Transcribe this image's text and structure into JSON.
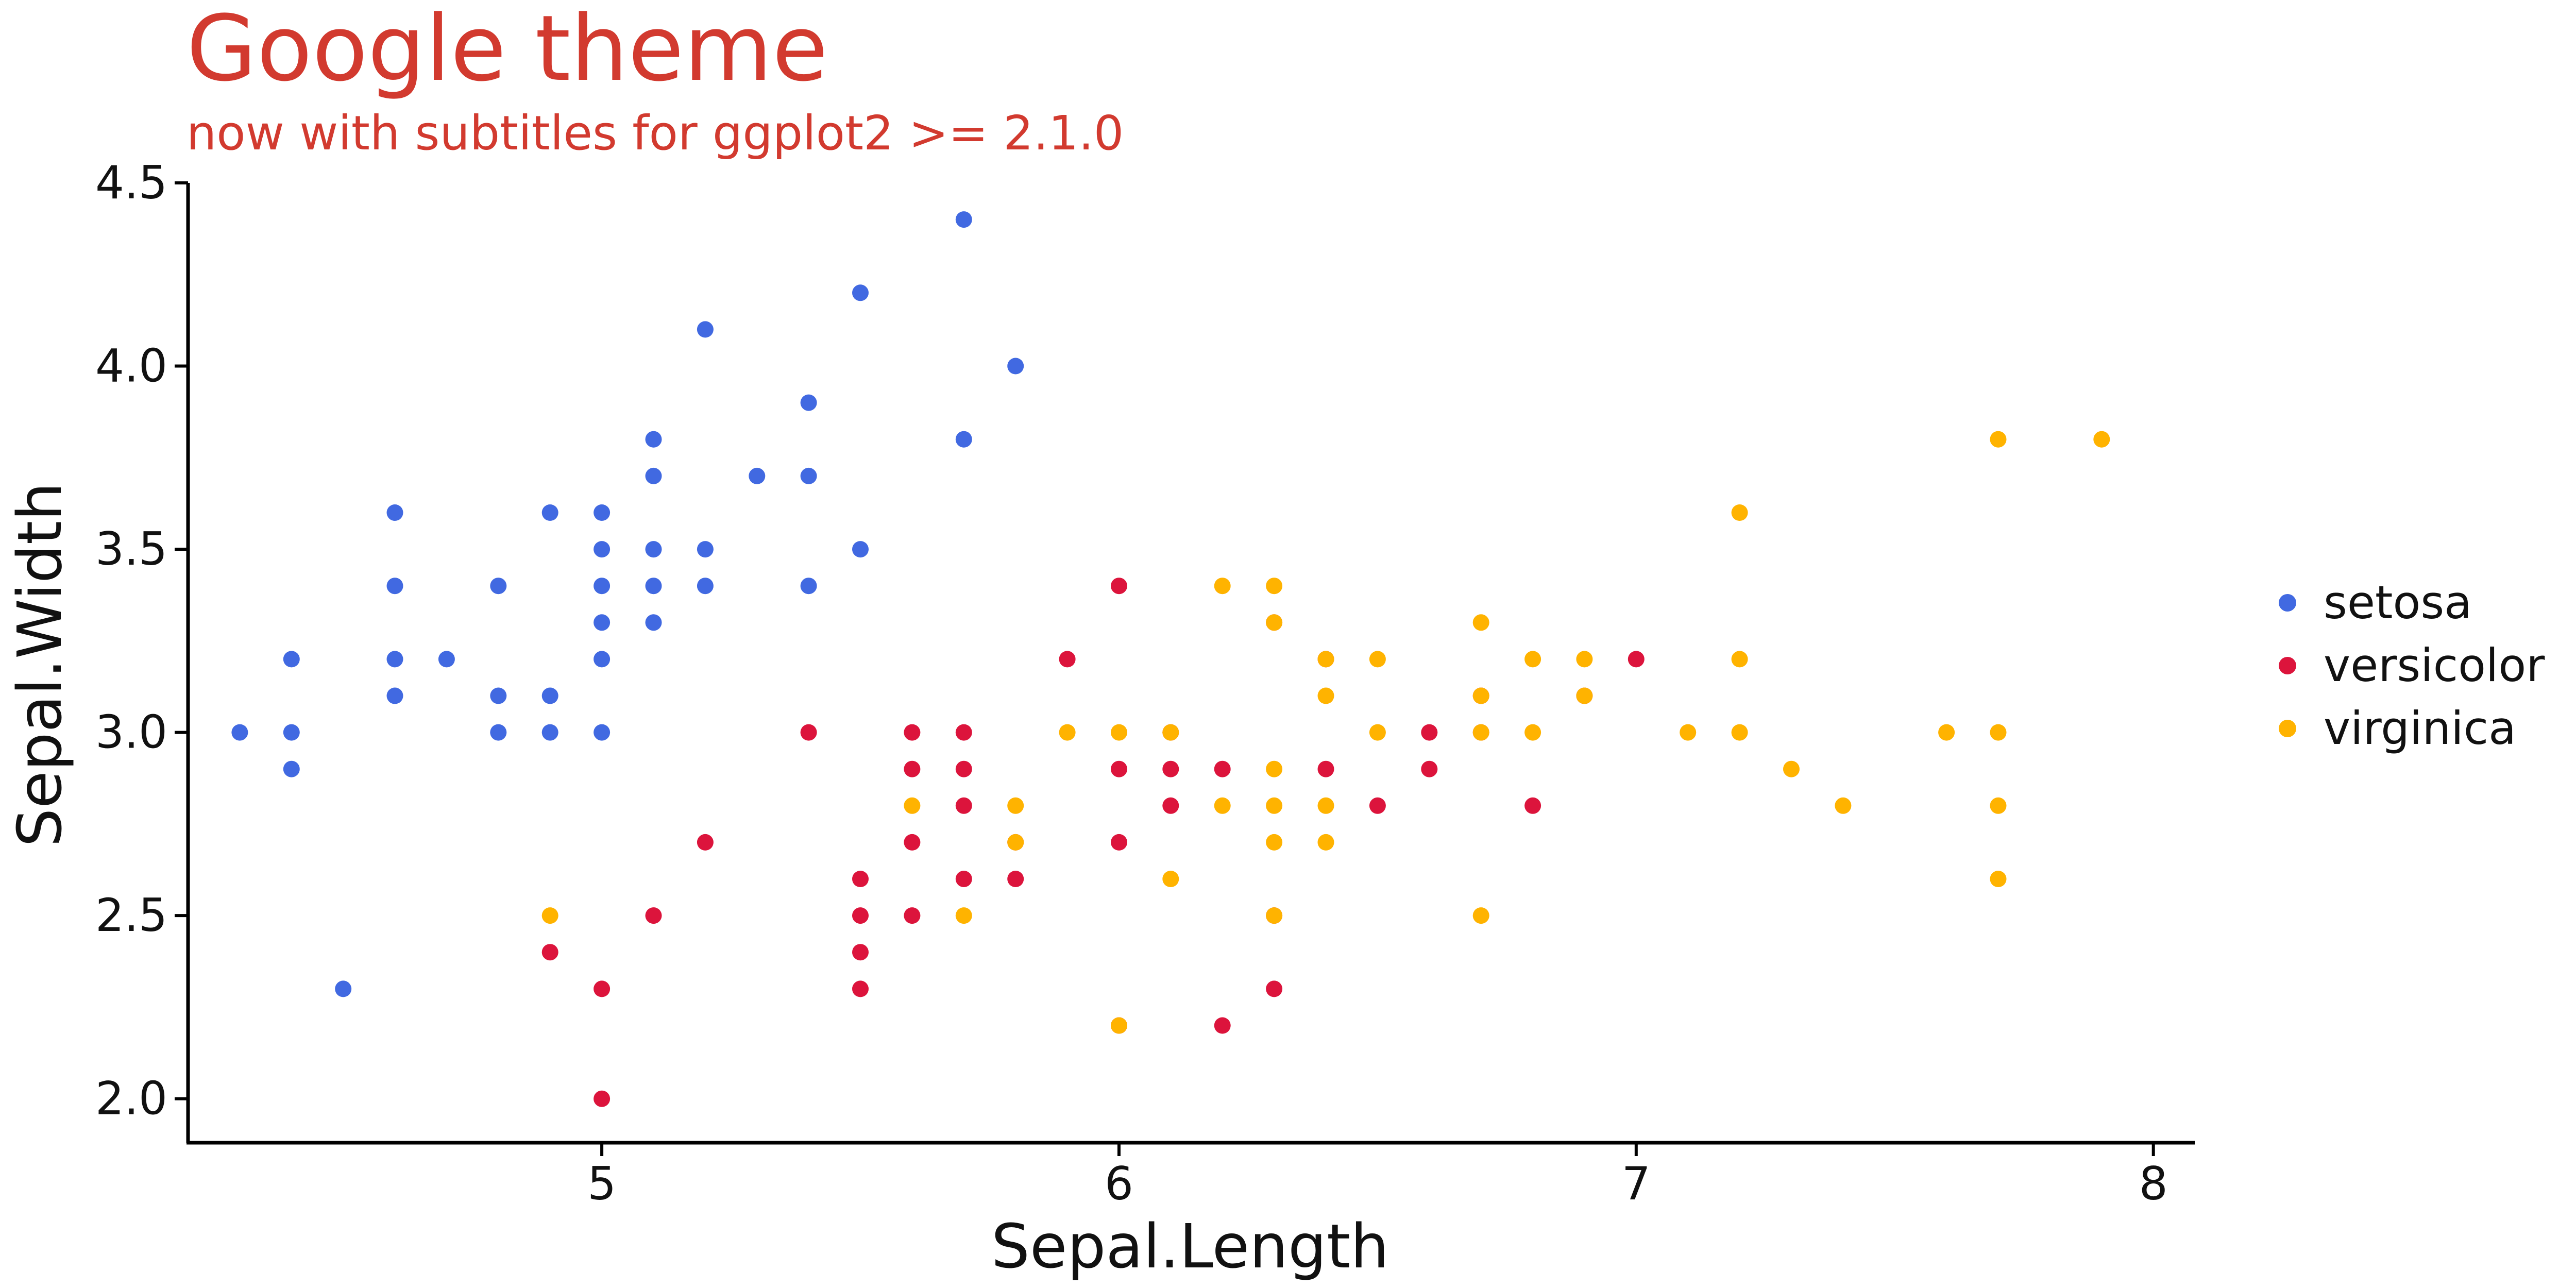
{
  "chart_data": {
    "type": "scatter",
    "title": "Google theme",
    "subtitle": "now with subtitles for ggplot2 >= 2.1.0",
    "xlabel": "Sepal.Length",
    "ylabel": "Sepal.Width",
    "xlim": [
      4.2,
      8.08
    ],
    "ylim": [
      1.88,
      4.5
    ],
    "xticks": [
      5,
      6,
      7,
      8
    ],
    "yticks": [
      2.0,
      2.5,
      3.0,
      3.5,
      4.0,
      4.5
    ],
    "ytick_labels": [
      "2.0",
      "2.5",
      "3.0",
      "3.5",
      "4.0",
      "4.5"
    ],
    "xtick_labels": [
      "5",
      "6",
      "7",
      "8"
    ],
    "grid": false,
    "legend_position": "right",
    "series": [
      {
        "name": "setosa",
        "color": "#4169E1",
        "points": [
          [
            4.3,
            3.0
          ],
          [
            4.4,
            2.9
          ],
          [
            4.4,
            3.0
          ],
          [
            4.4,
            3.2
          ],
          [
            4.5,
            2.3
          ],
          [
            4.6,
            3.1
          ],
          [
            4.6,
            3.2
          ],
          [
            4.6,
            3.4
          ],
          [
            4.6,
            3.6
          ],
          [
            4.7,
            3.2
          ],
          [
            4.8,
            3.0
          ],
          [
            4.8,
            3.1
          ],
          [
            4.8,
            3.4
          ],
          [
            4.9,
            3.0
          ],
          [
            4.9,
            3.1
          ],
          [
            4.9,
            3.6
          ],
          [
            5.0,
            3.0
          ],
          [
            5.0,
            3.2
          ],
          [
            5.0,
            3.3
          ],
          [
            5.0,
            3.4
          ],
          [
            5.0,
            3.5
          ],
          [
            5.0,
            3.6
          ],
          [
            5.1,
            3.3
          ],
          [
            5.1,
            3.4
          ],
          [
            5.1,
            3.5
          ],
          [
            5.1,
            3.7
          ],
          [
            5.1,
            3.8
          ],
          [
            5.2,
            3.4
          ],
          [
            5.2,
            3.5
          ],
          [
            5.2,
            4.1
          ],
          [
            5.3,
            3.7
          ],
          [
            5.4,
            3.4
          ],
          [
            5.4,
            3.7
          ],
          [
            5.4,
            3.9
          ],
          [
            5.5,
            3.5
          ],
          [
            5.5,
            4.2
          ],
          [
            5.7,
            3.8
          ],
          [
            5.7,
            4.4
          ],
          [
            5.8,
            4.0
          ]
        ]
      },
      {
        "name": "versicolor",
        "color": "#DC143C",
        "points": [
          [
            4.9,
            2.4
          ],
          [
            5.0,
            2.0
          ],
          [
            5.0,
            2.3
          ],
          [
            5.1,
            2.5
          ],
          [
            5.2,
            2.7
          ],
          [
            5.4,
            3.0
          ],
          [
            5.5,
            2.3
          ],
          [
            5.5,
            2.4
          ],
          [
            5.5,
            2.5
          ],
          [
            5.5,
            2.6
          ],
          [
            5.6,
            2.5
          ],
          [
            5.6,
            2.7
          ],
          [
            5.6,
            2.9
          ],
          [
            5.6,
            3.0
          ],
          [
            5.7,
            2.6
          ],
          [
            5.7,
            2.8
          ],
          [
            5.7,
            2.9
          ],
          [
            5.7,
            3.0
          ],
          [
            5.8,
            2.6
          ],
          [
            5.8,
            2.7
          ],
          [
            5.9,
            3.2
          ],
          [
            6.0,
            2.2
          ],
          [
            6.0,
            2.7
          ],
          [
            6.0,
            2.9
          ],
          [
            6.0,
            3.4
          ],
          [
            6.1,
            2.8
          ],
          [
            6.1,
            2.9
          ],
          [
            6.1,
            3.0
          ],
          [
            6.2,
            2.2
          ],
          [
            6.2,
            2.9
          ],
          [
            6.3,
            2.3
          ],
          [
            6.3,
            2.5
          ],
          [
            6.3,
            3.3
          ],
          [
            6.4,
            2.9
          ],
          [
            6.4,
            3.2
          ],
          [
            6.5,
            2.8
          ],
          [
            6.6,
            2.9
          ],
          [
            6.6,
            3.0
          ],
          [
            6.7,
            3.0
          ],
          [
            6.7,
            3.1
          ],
          [
            6.8,
            2.8
          ],
          [
            6.9,
            3.1
          ],
          [
            7.0,
            3.2
          ]
        ]
      },
      {
        "name": "virginica",
        "color": "#FFB300",
        "points": [
          [
            4.9,
            2.5
          ],
          [
            5.6,
            2.8
          ],
          [
            5.7,
            2.5
          ],
          [
            5.8,
            2.7
          ],
          [
            5.8,
            2.8
          ],
          [
            5.9,
            3.0
          ],
          [
            6.0,
            2.2
          ],
          [
            6.0,
            3.0
          ],
          [
            6.1,
            2.6
          ],
          [
            6.1,
            3.0
          ],
          [
            6.2,
            2.8
          ],
          [
            6.2,
            3.4
          ],
          [
            6.3,
            2.5
          ],
          [
            6.3,
            2.7
          ],
          [
            6.3,
            2.8
          ],
          [
            6.3,
            2.9
          ],
          [
            6.3,
            3.3
          ],
          [
            6.3,
            3.4
          ],
          [
            6.4,
            2.7
          ],
          [
            6.4,
            2.8
          ],
          [
            6.4,
            3.1
          ],
          [
            6.4,
            3.2
          ],
          [
            6.5,
            3.0
          ],
          [
            6.5,
            3.2
          ],
          [
            6.7,
            2.5
          ],
          [
            6.7,
            3.0
          ],
          [
            6.7,
            3.1
          ],
          [
            6.7,
            3.3
          ],
          [
            6.8,
            3.0
          ],
          [
            6.8,
            3.2
          ],
          [
            6.9,
            3.1
          ],
          [
            6.9,
            3.2
          ],
          [
            7.1,
            3.0
          ],
          [
            7.2,
            3.0
          ],
          [
            7.2,
            3.2
          ],
          [
            7.2,
            3.6
          ],
          [
            7.3,
            2.9
          ],
          [
            7.4,
            2.8
          ],
          [
            7.6,
            3.0
          ],
          [
            7.7,
            2.6
          ],
          [
            7.7,
            2.8
          ],
          [
            7.7,
            3.0
          ],
          [
            7.7,
            3.8
          ],
          [
            7.9,
            3.8
          ]
        ]
      }
    ]
  }
}
